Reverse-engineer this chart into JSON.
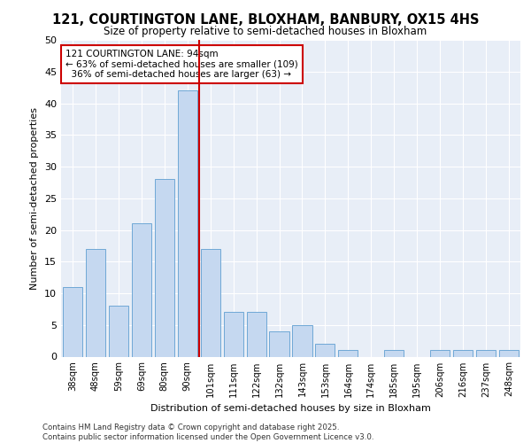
{
  "title": "121, COURTINGTON LANE, BLOXHAM, BANBURY, OX15 4HS",
  "subtitle": "Size of property relative to semi-detached houses in Bloxham",
  "xlabel": "Distribution of semi-detached houses by size in Bloxham",
  "ylabel": "Number of semi-detached properties",
  "categories": [
    "38sqm",
    "48sqm",
    "59sqm",
    "69sqm",
    "80sqm",
    "90sqm",
    "101sqm",
    "111sqm",
    "122sqm",
    "132sqm",
    "143sqm",
    "153sqm",
    "164sqm",
    "174sqm",
    "185sqm",
    "195sqm",
    "206sqm",
    "216sqm",
    "237sqm",
    "248sqm"
  ],
  "values": [
    11,
    17,
    8,
    21,
    28,
    42,
    17,
    7,
    7,
    4,
    5,
    2,
    1,
    0,
    1,
    0,
    1,
    1,
    1,
    1
  ],
  "bar_color": "#c5d8f0",
  "bar_edge_color": "#6fa8d6",
  "vline_color": "#cc0000",
  "annotation_title": "121 COURTINGTON LANE: 94sqm",
  "annotation_line1": "← 63% of semi-detached houses are smaller (109)",
  "annotation_line2": "  36% of semi-detached houses are larger (63) →",
  "annotation_box_color": "#cc0000",
  "ylim": [
    0,
    50
  ],
  "yticks": [
    0,
    5,
    10,
    15,
    20,
    25,
    30,
    35,
    40,
    45,
    50
  ],
  "background_color": "#e8eef7",
  "footer_line1": "Contains HM Land Registry data © Crown copyright and database right 2025.",
  "footer_line2": "Contains public sector information licensed under the Open Government Licence v3.0."
}
